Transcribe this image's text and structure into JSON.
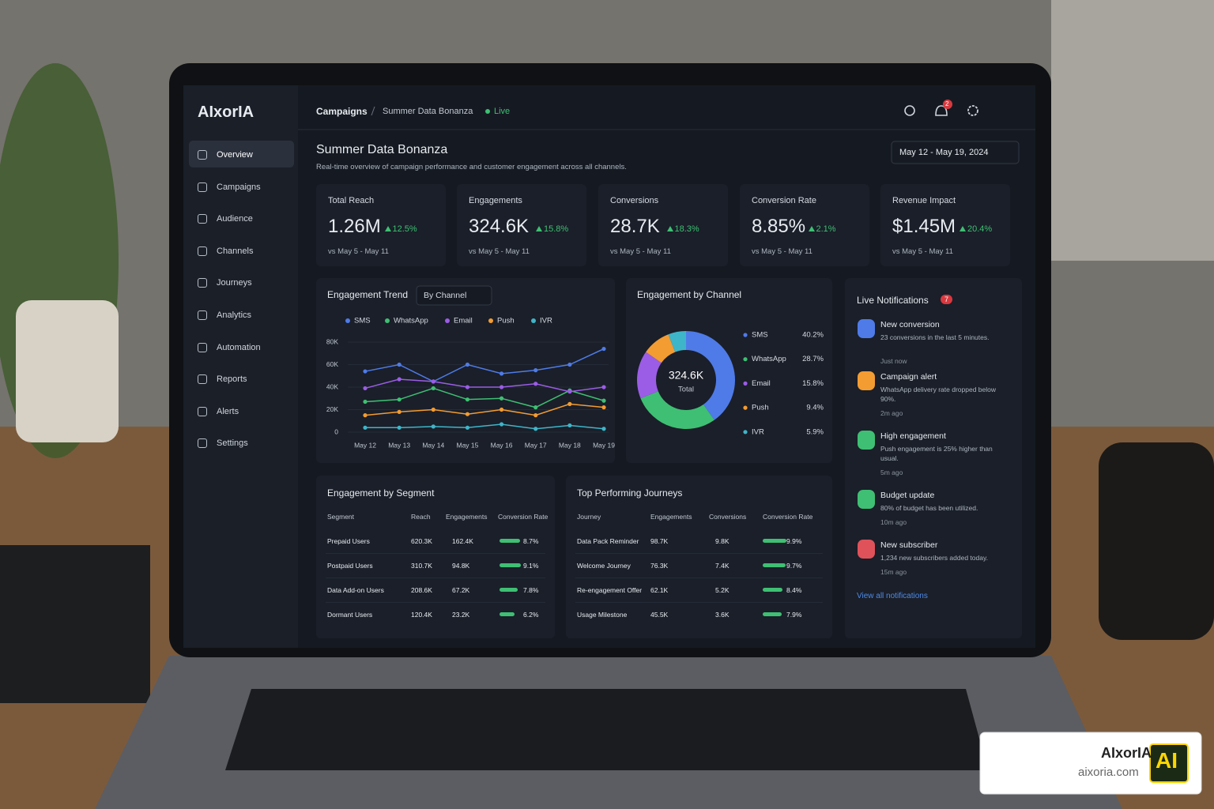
{
  "brand": "AIxorIA",
  "nav": [
    "Overview",
    "Campaigns",
    "Audience",
    "Channels",
    "Journeys",
    "Analytics",
    "Automation",
    "Reports",
    "Alerts",
    "Settings"
  ],
  "breadcrumb": {
    "section": "Campaigns",
    "current": "Summer Data Bonanza",
    "status": "Live"
  },
  "notification_badge": 2,
  "page": {
    "title": "Summer Data Bonanza",
    "subtitle": "Real-time overview of campaign performance and customer engagement across all channels.",
    "date_range": "May 12 - May 19, 2024"
  },
  "kpis": [
    {
      "label": "Total Reach",
      "value": "1.26M",
      "change": "12.5%",
      "period": "vs May 5 - May 11"
    },
    {
      "label": "Engagements",
      "value": "324.6K",
      "change": "15.8%",
      "period": "vs May 5 - May 11"
    },
    {
      "label": "Conversions",
      "value": "28.7K",
      "change": "18.3%",
      "period": "vs May 5 - May 11"
    },
    {
      "label": "Conversion Rate",
      "value": "8.85%",
      "change": "2.1%",
      "period": "vs May 5 - May 11"
    },
    {
      "label": "Revenue Impact",
      "value": "$1.45M",
      "change": "20.4%",
      "period": "vs May 5 - May 11"
    }
  ],
  "chart_data": [
    {
      "type": "line",
      "title": "Engagement Trend",
      "control": "By Channel",
      "categories": [
        "May 12",
        "May 13",
        "May 14",
        "May 15",
        "May 16",
        "May 17",
        "May 18",
        "May 19"
      ],
      "ylim": [
        0,
        80000
      ],
      "yticks": [
        0,
        {
          "value": 20000,
          "label": "20K"
        },
        {
          "value": 40000,
          "label": "40K"
        },
        {
          "value": 60000,
          "label": "60K"
        },
        {
          "value": 80000,
          "label": "80K"
        }
      ],
      "grid": true,
      "series": [
        {
          "name": "SMS",
          "color": "#4f7be8",
          "values": [
            54000,
            60000,
            45000,
            60000,
            52000,
            55000,
            60000,
            74000
          ]
        },
        {
          "name": "WhatsApp",
          "color": "#3fbf73",
          "values": [
            27000,
            29000,
            39000,
            29000,
            30000,
            22000,
            37000,
            28000
          ]
        },
        {
          "name": "Email",
          "color": "#9b5de5",
          "values": [
            39000,
            47000,
            45000,
            40000,
            40000,
            43000,
            36000,
            40000
          ]
        },
        {
          "name": "Push",
          "color": "#f39c32",
          "values": [
            15000,
            18000,
            20000,
            16000,
            20000,
            15000,
            25000,
            22000
          ]
        },
        {
          "name": "IVR",
          "color": "#3fb5c9",
          "values": [
            4000,
            4000,
            5000,
            4000,
            7000,
            3000,
            6000,
            3000
          ]
        }
      ]
    },
    {
      "type": "donut",
      "title": "Engagement by Channel",
      "center_value": "324.6K",
      "center_label": "Total",
      "categories": [
        "SMS",
        "WhatsApp",
        "Email",
        "Push",
        "IVR"
      ],
      "values": [
        40.2,
        28.7,
        15.8,
        9.4,
        5.9
      ],
      "value_labels": [
        "40.2%",
        "28.7%",
        "15.8%",
        "9.4%",
        "5.9%"
      ],
      "colors": [
        "#4f7be8",
        "#3fbf73",
        "#9b5de5",
        "#f39c32",
        "#3fb5c9"
      ]
    }
  ],
  "notifications": {
    "title": "Live Notifications",
    "count": 7,
    "link": "View all notifications",
    "items": [
      {
        "title": "New conversion",
        "text": "23 conversions in the last 5 minutes.",
        "time": "Just now",
        "color": "#4f7be8"
      },
      {
        "title": "Campaign alert",
        "text": "WhatsApp delivery rate dropped below 90%.",
        "time": "2m ago",
        "color": "#f39c32"
      },
      {
        "title": "High engagement",
        "text": "Push engagement is 25% higher than usual.",
        "time": "5m ago",
        "color": "#3fbf73"
      },
      {
        "title": "Budget update",
        "text": "80% of budget has been utilized.",
        "time": "10m ago",
        "color": "#3fbf73"
      },
      {
        "title": "New subscriber",
        "text": "1,234 new subscribers added today.",
        "time": "15m ago",
        "color": "#e0525a"
      }
    ]
  },
  "segments": {
    "title": "Engagement by Segment",
    "columns": [
      "Segment",
      "Reach",
      "Engagements",
      "Conversion Rate"
    ],
    "rows": [
      {
        "name": "Prepaid Users",
        "a": "620.3K",
        "b": "162.4K",
        "rate": 8.7,
        "rate_label": "8.7%"
      },
      {
        "name": "Postpaid Users",
        "a": "310.7K",
        "b": "94.8K",
        "rate": 9.1,
        "rate_label": "9.1%"
      },
      {
        "name": "Data Add-on Users",
        "a": "208.6K",
        "b": "67.2K",
        "rate": 7.8,
        "rate_label": "7.8%"
      },
      {
        "name": "Dormant Users",
        "a": "120.4K",
        "b": "23.2K",
        "rate": 6.2,
        "rate_label": "6.2%"
      }
    ]
  },
  "journeys": {
    "title": "Top Performing Journeys",
    "columns": [
      "Journey",
      "Engagements",
      "Conversions",
      "Conversion Rate"
    ],
    "rows": [
      {
        "name": "Data Pack Reminder",
        "a": "98.7K",
        "b": "9.8K",
        "rate": 9.9,
        "rate_label": "9.9%"
      },
      {
        "name": "Welcome Journey",
        "a": "76.3K",
        "b": "7.4K",
        "rate": 9.7,
        "rate_label": "9.7%"
      },
      {
        "name": "Re-engagement Offer",
        "a": "62.1K",
        "b": "5.2K",
        "rate": 8.4,
        "rate_label": "8.4%"
      },
      {
        "name": "Usage Milestone",
        "a": "45.5K",
        "b": "3.6K",
        "rate": 7.9,
        "rate_label": "7.9%"
      }
    ]
  },
  "watermark": {
    "brand": "AIxorIA",
    "url": "aixoria.com",
    "logo": "AI"
  }
}
